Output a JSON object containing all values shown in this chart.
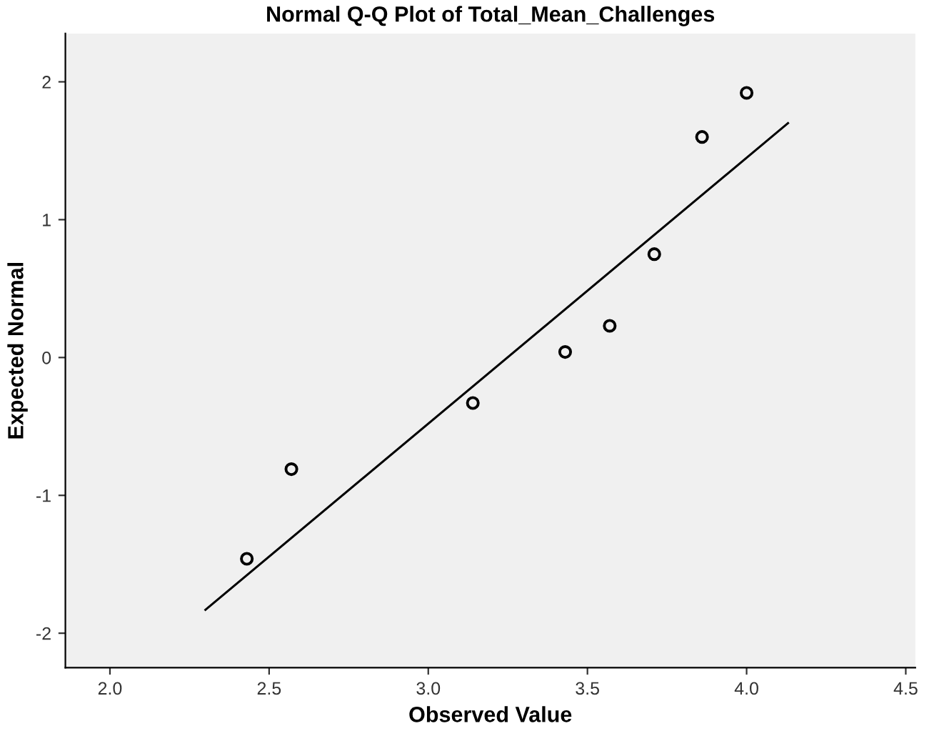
{
  "chart_data": {
    "type": "scatter",
    "title": "Normal Q-Q Plot of Total_Mean_Challenges",
    "xlabel": "Observed Value",
    "ylabel": "Expected Normal",
    "series": [
      {
        "color": "#000000",
        "marker": "circle",
        "x": [
          2.43,
          2.57,
          3.14,
          3.43,
          3.57,
          3.71,
          3.86,
          4.0
        ],
        "values": [
          -1.46,
          -0.81,
          -0.33,
          0.04,
          0.23,
          0.75,
          1.6,
          1.92
        ]
      },
      {
        "type": "line",
        "color": "#000000",
        "x": [
          2.3,
          4.13
        ],
        "values": [
          -1.83,
          1.7
        ]
      }
    ],
    "xlim": [
      1.86,
      4.53
    ],
    "ylim": [
      -2.25,
      2.35
    ],
    "xticks": [
      {
        "value": 2,
        "label": "2.0"
      },
      {
        "value": 2.5,
        "label": "2.5"
      },
      {
        "value": 3,
        "label": "3.0"
      },
      {
        "value": 3.5,
        "label": "3.5"
      },
      {
        "value": 4,
        "label": "4.0"
      },
      {
        "value": 4.5,
        "label": "4.5"
      }
    ],
    "yticks": [
      -2,
      -1,
      0,
      1,
      2
    ],
    "grid": false,
    "legend": false
  }
}
